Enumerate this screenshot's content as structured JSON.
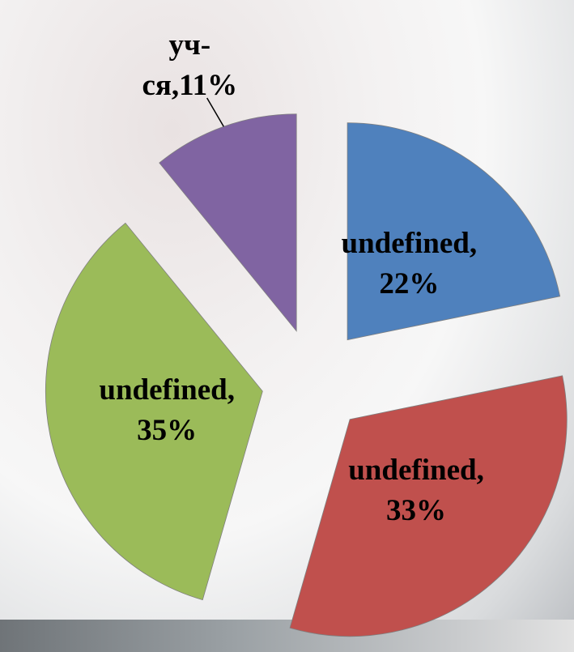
{
  "chart_data": {
    "type": "pie",
    "values": [
      22,
      33,
      35,
      11
    ],
    "value_labels": [
      "undefined,22%",
      "undefined,33%",
      "undefined,35%",
      "уч-ся,11%"
    ],
    "colors": [
      "#4f81bd",
      "#c0504d",
      "#9bbb59",
      "#8064a2"
    ]
  }
}
